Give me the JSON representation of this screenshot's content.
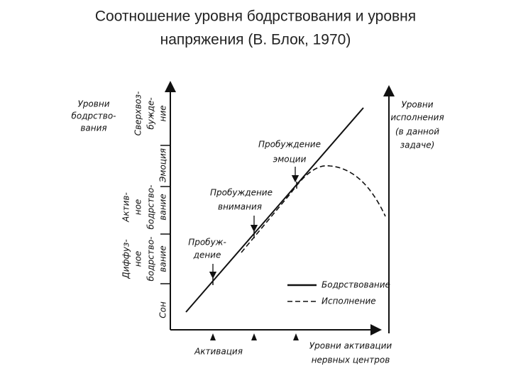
{
  "title": {
    "lines": [
      "Соотношение уровня бодрствования и уровня",
      "напряжения (В. Блок, 1970)"
    ]
  },
  "left_axis": {
    "label_lines": [
      "Уровни",
      "бодрство-",
      "вания"
    ]
  },
  "levels": [
    {
      "lines": [
        "Сон"
      ]
    },
    {
      "lines": [
        "Диффуз-",
        "ное",
        "бодрство-",
        "вание"
      ]
    },
    {
      "lines": [
        "Актив-",
        "ное",
        "бодрство-",
        "вание"
      ]
    },
    {
      "lines": [
        "Эмоция"
      ]
    },
    {
      "lines": [
        "Сверхвоз-",
        "бужде-",
        "ние"
      ]
    }
  ],
  "right_axis": {
    "label_lines": [
      "Уровни",
      "исполнения",
      "(в данной",
      "задаче)"
    ]
  },
  "annotations": [
    {
      "lines": [
        "Пробуж-",
        "дение"
      ]
    },
    {
      "lines": [
        "Пробуждение",
        "внимания"
      ]
    },
    {
      "lines": [
        "Пробуждение",
        "эмоции"
      ]
    }
  ],
  "legend": [
    "Бодрствование",
    "Исполнение"
  ],
  "x_axis": {
    "label": "Активация",
    "title_lines": [
      "Уровни активации",
      "нервных центров"
    ]
  }
}
